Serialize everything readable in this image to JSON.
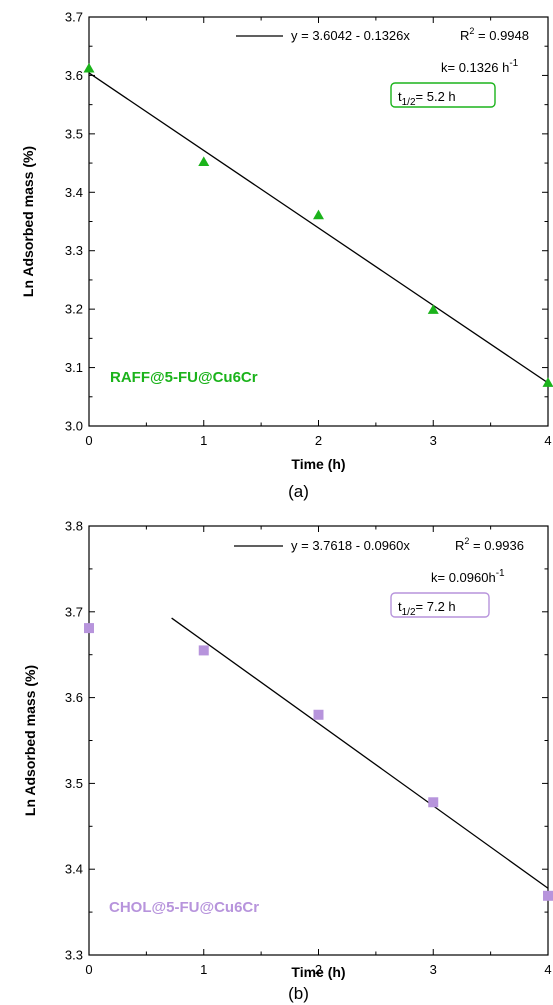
{
  "chart_data": [
    {
      "type": "scatter",
      "panel_label": "(a)",
      "xlabel": "Time (h)",
      "ylabel": "Ln Adsorbed mass (%)",
      "xlim": [
        0,
        4
      ],
      "ylim": [
        3.0,
        3.7
      ],
      "x_ticks": [
        "0",
        "1",
        "2",
        "3",
        "4"
      ],
      "y_ticks": [
        "3.0",
        "3.1",
        "3.2",
        "3.3",
        "3.4",
        "3.5",
        "3.6",
        "3.7"
      ],
      "series": [
        {
          "color": "#1bb31b",
          "marker": "triangle",
          "x": [
            0,
            1,
            2,
            3,
            4
          ],
          "y": [
            3.612,
            3.452,
            3.361,
            3.199,
            3.074
          ]
        }
      ],
      "fit_line": {
        "intercept": 3.6042,
        "slope": -0.1326,
        "x_range": [
          0,
          4
        ],
        "color": "#000000"
      },
      "legend_equation": "y = 3.6042 - 0.1326x",
      "r2_label": "R",
      "r2_sup": "2",
      "r2_value": "= 0.9948",
      "k_text": "k= 0.1326 h",
      "k_sup": "-1",
      "half_life_t": "t",
      "half_life_sub": "1/2",
      "half_life_value": "= 5.2 h",
      "box_color": "#1bb31b",
      "sample_label": "RAFF@5-FU@Cu6Cr",
      "sample_color": "#1bb31b"
    },
    {
      "type": "scatter",
      "panel_label": "(b)",
      "xlabel": "Time (h)",
      "ylabel": "Ln Adsorbed mass (%)",
      "xlim": [
        0,
        4
      ],
      "ylim": [
        3.3,
        3.8
      ],
      "x_ticks": [
        "0",
        "1",
        "2",
        "3",
        "4"
      ],
      "y_ticks": [
        "3.3",
        "3.4",
        "3.5",
        "3.6",
        "3.7",
        "3.8"
      ],
      "series": [
        {
          "color": "#b794dc",
          "marker": "square",
          "x": [
            0,
            1,
            2,
            3,
            4
          ],
          "y": [
            3.681,
            3.655,
            3.58,
            3.478,
            3.369
          ]
        }
      ],
      "fit_line": {
        "intercept": 3.7618,
        "slope": -0.096,
        "x_range": [
          0.72,
          4
        ],
        "color": "#000000"
      },
      "legend_equation": "y = 3.7618 - 0.0960x",
      "r2_label": "R",
      "r2_sup": "2",
      "r2_value": "= 0.9936",
      "k_text": "k= 0.0960h",
      "k_sup": "-1",
      "half_life_t": "t",
      "half_life_sub": "1/2",
      "half_life_value": "= 7.2 h",
      "box_color": "#b794dc",
      "sample_label": "CHOL@5-FU@Cu6Cr",
      "sample_color": "#b794dc"
    }
  ]
}
